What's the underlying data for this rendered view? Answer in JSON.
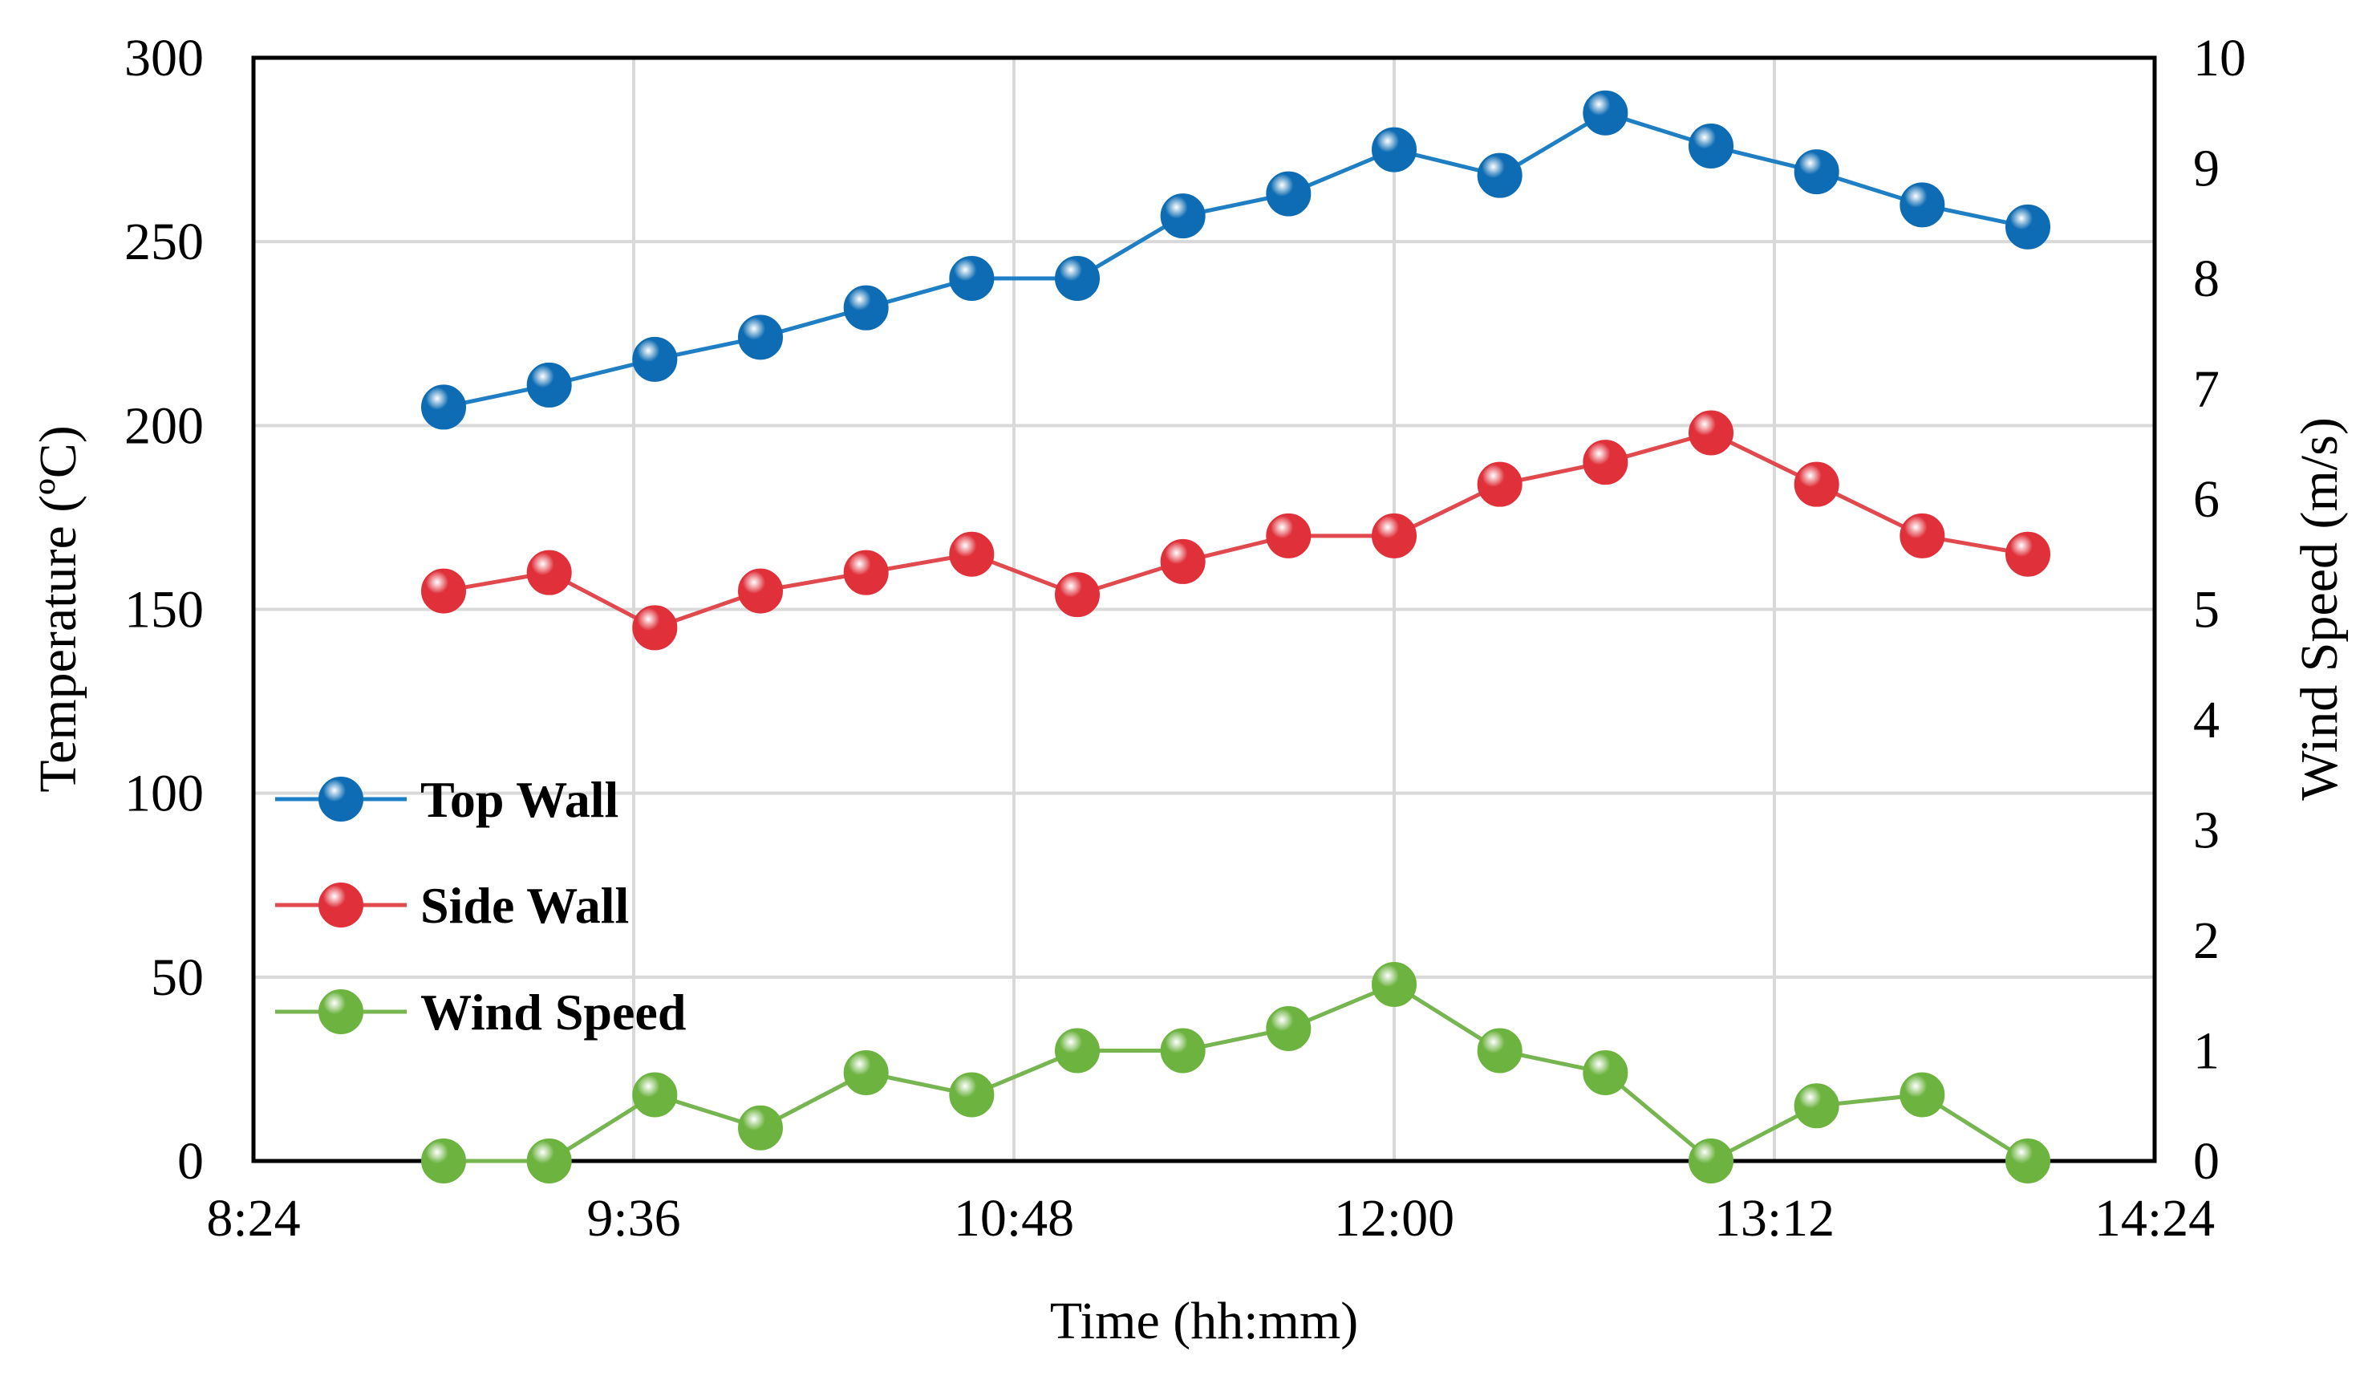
{
  "chart_data": {
    "type": "line",
    "title": "",
    "xlabel": "Time (hh:mm)",
    "ylabel": "Temperature (ºC)",
    "y2label": "Wind Speed (m/s)",
    "grid": true,
    "legend_position": "left",
    "x_ticks": [
      "8:24",
      "9:36",
      "10:48",
      "12:00",
      "13:12",
      "14:24"
    ],
    "x_tick_minutes": [
      504,
      576,
      648,
      720,
      792,
      864
    ],
    "xlim_minutes": [
      504,
      864
    ],
    "ylim": [
      0,
      300
    ],
    "y_ticks": [
      "0",
      "50",
      "100",
      "150",
      "200",
      "250",
      "300"
    ],
    "y_tick_values": [
      0,
      50,
      100,
      150,
      200,
      250,
      300
    ],
    "y2lim": [
      0,
      10
    ],
    "y2_ticks": [
      "0",
      "1",
      "2",
      "3",
      "4",
      "5",
      "6",
      "7",
      "8",
      "9",
      "10"
    ],
    "y2_tick_values": [
      0,
      1,
      2,
      3,
      4,
      5,
      6,
      7,
      8,
      9,
      10
    ],
    "x_minutes": [
      540,
      560,
      580,
      600,
      620,
      640,
      660,
      680,
      700,
      720,
      740,
      760,
      780,
      800,
      820,
      840
    ],
    "series": [
      {
        "name": "Top Wall",
        "axis": "left",
        "color": "#1f7fc4",
        "marker_color": "#0d6cb3",
        "values": [
          205,
          211,
          218,
          224,
          232,
          240,
          240,
          257,
          263,
          275,
          268,
          285,
          276,
          269,
          260,
          254
        ]
      },
      {
        "name": "Side Wall",
        "axis": "left",
        "color": "#e04a4f",
        "marker_color": "#e0303a",
        "values": [
          155,
          160,
          145,
          155,
          160,
          165,
          154,
          163,
          170,
          170,
          184,
          190,
          198,
          184,
          170,
          165
        ]
      },
      {
        "name": "Wind Speed",
        "axis": "right",
        "color": "#77b551",
        "marker_color": "#6cb33f",
        "values": [
          0.0,
          0.0,
          0.6,
          0.3,
          0.8,
          0.6,
          1.0,
          1.0,
          1.2,
          1.6,
          1.0,
          0.8,
          0.0,
          0.5,
          0.6,
          0.0
        ]
      }
    ]
  }
}
